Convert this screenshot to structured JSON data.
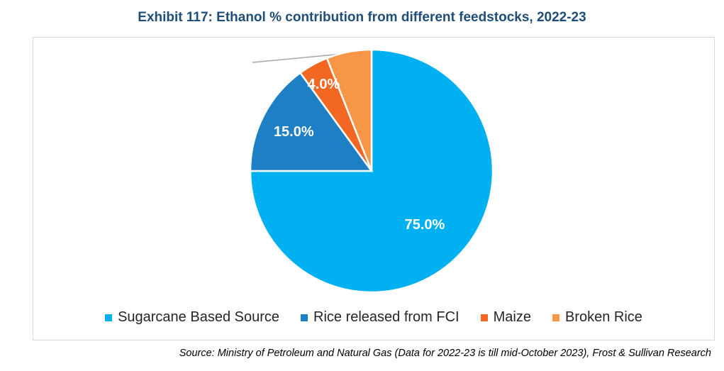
{
  "title": "Exhibit 117: Ethanol % contribution from different feedstocks, 2022-23",
  "source": "Source:  Ministry of Petroleum and Natural Gas (Data for 2022-23 is till mid-October 2023), Frost & Sullivan Research",
  "chart_data": {
    "type": "pie",
    "categories": [
      "Sugarcane Based Source",
      "Rice released from FCI",
      "Maize",
      "Broken Rice"
    ],
    "values": [
      75.0,
      15.0,
      4.0,
      6.0
    ],
    "value_labels": [
      "75.0%",
      "15.0%",
      "4.0%",
      ""
    ],
    "colors": [
      "#00b0f0",
      "#1f7fc4",
      "#f26722",
      "#f79646"
    ],
    "legend_placement": "bottom",
    "start_angle": "12 o'clock",
    "direction": "clockwise"
  }
}
